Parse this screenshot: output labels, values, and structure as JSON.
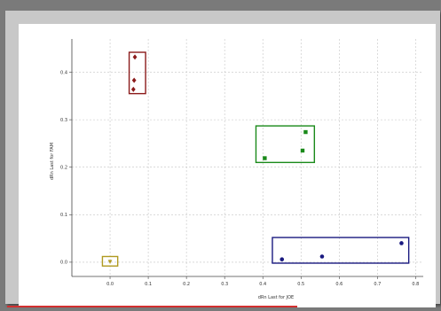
{
  "chart_data": {
    "type": "scatter",
    "xlabel": "dRn Last for JOE",
    "ylabel": "dRn Last for FAM",
    "xlim": [
      -0.1,
      0.82
    ],
    "ylim": [
      -0.03,
      0.47
    ],
    "grid": true,
    "x_ticks": [
      {
        "value": 0.0,
        "label": "0.0"
      },
      {
        "value": 0.1,
        "label": "0.1"
      },
      {
        "value": 0.2,
        "label": "0.2"
      },
      {
        "value": 0.3,
        "label": "0.3"
      },
      {
        "value": 0.4,
        "label": "0.4"
      },
      {
        "value": 0.5,
        "label": "0.5"
      },
      {
        "value": 0.6,
        "label": "0.6"
      },
      {
        "value": 0.7,
        "label": "0.7"
      },
      {
        "value": 0.8,
        "label": "0.8"
      }
    ],
    "y_ticks": [
      {
        "value": 0.0,
        "label": "0.0"
      },
      {
        "value": 0.1,
        "label": "0.1"
      },
      {
        "value": 0.2,
        "label": "0.2"
      },
      {
        "value": 0.3,
        "label": "0.3"
      },
      {
        "value": 0.4,
        "label": "0.4"
      }
    ],
    "series": [
      {
        "color": "#8b1a1a",
        "marker": "diamond",
        "points": [
          [
            0.065,
            0.432
          ],
          [
            0.063,
            0.383
          ],
          [
            0.061,
            0.364
          ]
        ],
        "box": {
          "x": [
            0.05,
            0.093
          ],
          "y": [
            0.355,
            0.442
          ]
        }
      },
      {
        "color": "#1a8a1a",
        "marker": "square",
        "points": [
          [
            0.512,
            0.274
          ],
          [
            0.504,
            0.235
          ],
          [
            0.405,
            0.219
          ]
        ],
        "box": {
          "x": [
            0.382,
            0.535
          ],
          "y": [
            0.21,
            0.287
          ]
        }
      },
      {
        "color": "#1a1a80",
        "marker": "circle",
        "points": [
          [
            0.45,
            0.006
          ],
          [
            0.555,
            0.012
          ],
          [
            0.763,
            0.04
          ]
        ],
        "box": {
          "x": [
            0.425,
            0.782
          ],
          "y": [
            -0.002,
            0.052
          ]
        }
      },
      {
        "color": "#b09a20",
        "marker": "triangle",
        "points": [
          [
            0.0,
            0.001
          ]
        ],
        "box": {
          "x": [
            -0.02,
            0.02
          ],
          "y": [
            -0.008,
            0.012
          ]
        }
      }
    ]
  }
}
